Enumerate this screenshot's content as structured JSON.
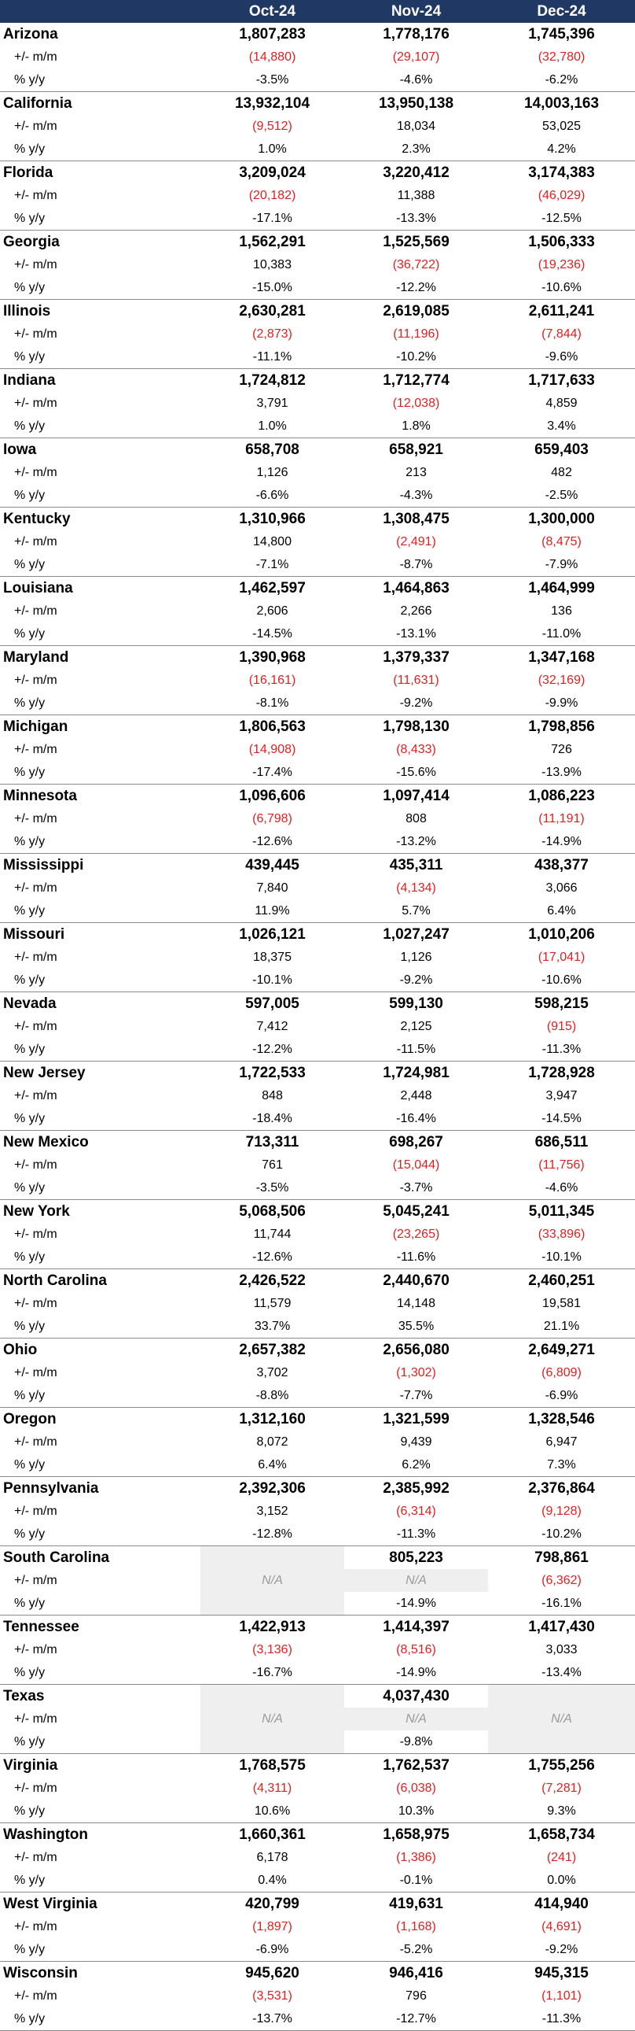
{
  "columns": [
    "Oct-24",
    "Nov-24",
    "Dec-24"
  ],
  "row_labels": {
    "mm": "+/- m/m",
    "yy": "% y/y"
  },
  "states": [
    {
      "name": "Arizona",
      "values": [
        "1,807,283",
        "1,778,176",
        "1,745,396"
      ],
      "mm": [
        "(14,880)",
        "(29,107)",
        "(32,780)"
      ],
      "yy": [
        "-3.5%",
        "-4.6%",
        "-6.2%"
      ]
    },
    {
      "name": "California",
      "values": [
        "13,932,104",
        "13,950,138",
        "14,003,163"
      ],
      "mm": [
        "(9,512)",
        "18,034",
        "53,025"
      ],
      "yy": [
        "1.0%",
        "2.3%",
        "4.2%"
      ]
    },
    {
      "name": "Florida",
      "values": [
        "3,209,024",
        "3,220,412",
        "3,174,383"
      ],
      "mm": [
        "(20,182)",
        "11,388",
        "(46,029)"
      ],
      "yy": [
        "-17.1%",
        "-13.3%",
        "-12.5%"
      ]
    },
    {
      "name": "Georgia",
      "values": [
        "1,562,291",
        "1,525,569",
        "1,506,333"
      ],
      "mm": [
        "10,383",
        "(36,722)",
        "(19,236)"
      ],
      "yy": [
        "-15.0%",
        "-12.2%",
        "-10.6%"
      ]
    },
    {
      "name": "Illinois",
      "values": [
        "2,630,281",
        "2,619,085",
        "2,611,241"
      ],
      "mm": [
        "(2,873)",
        "(11,196)",
        "(7,844)"
      ],
      "yy": [
        "-11.1%",
        "-10.2%",
        "-9.6%"
      ]
    },
    {
      "name": "Indiana",
      "values": [
        "1,724,812",
        "1,712,774",
        "1,717,633"
      ],
      "mm": [
        "3,791",
        "(12,038)",
        "4,859"
      ],
      "yy": [
        "1.0%",
        "1.8%",
        "3.4%"
      ]
    },
    {
      "name": "Iowa",
      "values": [
        "658,708",
        "658,921",
        "659,403"
      ],
      "mm": [
        "1,126",
        "213",
        "482"
      ],
      "yy": [
        "-6.6%",
        "-4.3%",
        "-2.5%"
      ]
    },
    {
      "name": "Kentucky",
      "values": [
        "1,310,966",
        "1,308,475",
        "1,300,000"
      ],
      "mm": [
        "14,800",
        "(2,491)",
        "(8,475)"
      ],
      "yy": [
        "-7.1%",
        "-8.7%",
        "-7.9%"
      ]
    },
    {
      "name": "Louisiana",
      "values": [
        "1,462,597",
        "1,464,863",
        "1,464,999"
      ],
      "mm": [
        "2,606",
        "2,266",
        "136"
      ],
      "yy": [
        "-14.5%",
        "-13.1%",
        "-11.0%"
      ]
    },
    {
      "name": "Maryland",
      "values": [
        "1,390,968",
        "1,379,337",
        "1,347,168"
      ],
      "mm": [
        "(16,161)",
        "(11,631)",
        "(32,169)"
      ],
      "yy": [
        "-8.1%",
        "-9.2%",
        "-9.9%"
      ]
    },
    {
      "name": "Michigan",
      "values": [
        "1,806,563",
        "1,798,130",
        "1,798,856"
      ],
      "mm": [
        "(14,908)",
        "(8,433)",
        "726"
      ],
      "yy": [
        "-17.4%",
        "-15.6%",
        "-13.9%"
      ]
    },
    {
      "name": "Minnesota",
      "values": [
        "1,096,606",
        "1,097,414",
        "1,086,223"
      ],
      "mm": [
        "(6,798)",
        "808",
        "(11,191)"
      ],
      "yy": [
        "-12.6%",
        "-13.2%",
        "-14.9%"
      ]
    },
    {
      "name": "Mississippi",
      "values": [
        "439,445",
        "435,311",
        "438,377"
      ],
      "mm": [
        "7,840",
        "(4,134)",
        "3,066"
      ],
      "yy": [
        "11.9%",
        "5.7%",
        "6.4%"
      ]
    },
    {
      "name": "Missouri",
      "values": [
        "1,026,121",
        "1,027,247",
        "1,010,206"
      ],
      "mm": [
        "18,375",
        "1,126",
        "(17,041)"
      ],
      "yy": [
        "-10.1%",
        "-9.2%",
        "-10.6%"
      ]
    },
    {
      "name": "Nevada",
      "values": [
        "597,005",
        "599,130",
        "598,215"
      ],
      "mm": [
        "7,412",
        "2,125",
        "(915)"
      ],
      "yy": [
        "-12.2%",
        "-11.5%",
        "-11.3%"
      ]
    },
    {
      "name": "New Jersey",
      "values": [
        "1,722,533",
        "1,724,981",
        "1,728,928"
      ],
      "mm": [
        "848",
        "2,448",
        "3,947"
      ],
      "yy": [
        "-18.4%",
        "-16.4%",
        "-14.5%"
      ]
    },
    {
      "name": "New Mexico",
      "values": [
        "713,311",
        "698,267",
        "686,511"
      ],
      "mm": [
        "761",
        "(15,044)",
        "(11,756)"
      ],
      "yy": [
        "-3.5%",
        "-3.7%",
        "-4.6%"
      ]
    },
    {
      "name": "New York",
      "values": [
        "5,068,506",
        "5,045,241",
        "5,011,345"
      ],
      "mm": [
        "11,744",
        "(23,265)",
        "(33,896)"
      ],
      "yy": [
        "-12.6%",
        "-11.6%",
        "-10.1%"
      ]
    },
    {
      "name": "North Carolina",
      "values": [
        "2,426,522",
        "2,440,670",
        "2,460,251"
      ],
      "mm": [
        "11,579",
        "14,148",
        "19,581"
      ],
      "yy": [
        "33.7%",
        "35.5%",
        "21.1%"
      ]
    },
    {
      "name": "Ohio",
      "values": [
        "2,657,382",
        "2,656,080",
        "2,649,271"
      ],
      "mm": [
        "3,702",
        "(1,302)",
        "(6,809)"
      ],
      "yy": [
        "-8.8%",
        "-7.7%",
        "-6.9%"
      ]
    },
    {
      "name": "Oregon",
      "values": [
        "1,312,160",
        "1,321,599",
        "1,328,546"
      ],
      "mm": [
        "8,072",
        "9,439",
        "6,947"
      ],
      "yy": [
        "6.4%",
        "6.2%",
        "7.3%"
      ]
    },
    {
      "name": "Pennsylvania",
      "values": [
        "2,392,306",
        "2,385,992",
        "2,376,864"
      ],
      "mm": [
        "3,152",
        "(6,314)",
        "(9,128)"
      ],
      "yy": [
        "-12.8%",
        "-11.3%",
        "-10.2%"
      ]
    },
    {
      "name": "South Carolina",
      "values": [
        null,
        "805,223",
        "798,861"
      ],
      "mm": [
        "N/A",
        "N/A",
        "(6,362)"
      ],
      "yy": [
        null,
        "-14.9%",
        "-16.1%"
      ]
    },
    {
      "name": "Tennessee",
      "values": [
        "1,422,913",
        "1,414,397",
        "1,417,430"
      ],
      "mm": [
        "(3,136)",
        "(8,516)",
        "3,033"
      ],
      "yy": [
        "-16.7%",
        "-14.9%",
        "-13.4%"
      ]
    },
    {
      "name": "Texas",
      "values": [
        null,
        "4,037,430",
        null
      ],
      "mm": [
        "N/A",
        "N/A",
        "N/A"
      ],
      "yy": [
        null,
        "-9.8%",
        null
      ]
    },
    {
      "name": "Virginia",
      "values": [
        "1,768,575",
        "1,762,537",
        "1,755,256"
      ],
      "mm": [
        "(4,311)",
        "(6,038)",
        "(7,281)"
      ],
      "yy": [
        "10.6%",
        "10.3%",
        "9.3%"
      ]
    },
    {
      "name": "Washington",
      "values": [
        "1,660,361",
        "1,658,975",
        "1,658,734"
      ],
      "mm": [
        "6,178",
        "(1,386)",
        "(241)"
      ],
      "yy": [
        "0.4%",
        "-0.1%",
        "0.0%"
      ]
    },
    {
      "name": "West Virginia",
      "values": [
        "420,799",
        "419,631",
        "414,940"
      ],
      "mm": [
        "(1,897)",
        "(1,168)",
        "(4,691)"
      ],
      "yy": [
        "-6.9%",
        "-5.2%",
        "-9.2%"
      ]
    },
    {
      "name": "Wisconsin",
      "values": [
        "945,620",
        "946,416",
        "945,315"
      ],
      "mm": [
        "(3,531)",
        "796",
        "(1,101)"
      ],
      "yy": [
        "-13.7%",
        "-12.7%",
        "-11.3%"
      ]
    }
  ]
}
